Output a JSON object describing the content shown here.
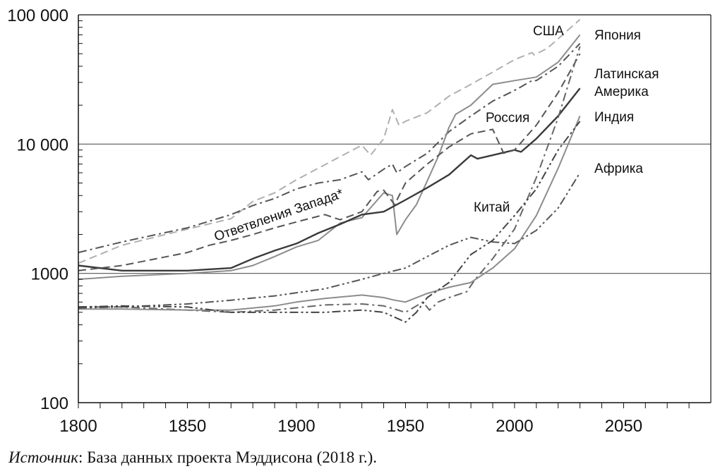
{
  "source": {
    "prefix": "Источник",
    "text": ": База данных проекта Мэддисона (2018 г.)."
  },
  "chart_data": {
    "type": "line",
    "title": "",
    "xlabel": "",
    "ylabel": "",
    "x_scale": "linear",
    "y_scale": "log",
    "xlim": [
      1800,
      2090
    ],
    "ylim": [
      100,
      100000
    ],
    "grid": "horizontal lines at 1000 and 10 000 only",
    "x_ticks": [
      "1800",
      "1850",
      "1900",
      "1950",
      "2000",
      "2050"
    ],
    "y_ticks": [
      "100",
      "1000",
      "10 000",
      "100 000"
    ],
    "series": [
      {
        "name": "США",
        "color": "#b0b0b0",
        "style": "dashed",
        "points": [
          [
            1800,
            1200
          ],
          [
            1820,
            1650
          ],
          [
            1850,
            2200
          ],
          [
            1870,
            2650
          ],
          [
            1880,
            3600
          ],
          [
            1890,
            4200
          ],
          [
            1900,
            5300
          ],
          [
            1910,
            6500
          ],
          [
            1920,
            8000
          ],
          [
            1930,
            9800
          ],
          [
            1934,
            8200
          ],
          [
            1940,
            11000
          ],
          [
            1944,
            18500
          ],
          [
            1947,
            14000
          ],
          [
            1950,
            15000
          ],
          [
            1960,
            17500
          ],
          [
            1970,
            23500
          ],
          [
            1980,
            29000
          ],
          [
            1990,
            36000
          ],
          [
            2000,
            45000
          ],
          [
            2008,
            51000
          ],
          [
            2009,
            49000
          ],
          [
            2015,
            55000
          ],
          [
            2030,
            92000
          ]
        ]
      },
      {
        "name": "Ответвления Запада",
        "color": "#555555",
        "style": "dashdot",
        "points": [
          [
            1800,
            1450
          ],
          [
            1820,
            1750
          ],
          [
            1850,
            2250
          ],
          [
            1870,
            2850
          ],
          [
            1880,
            3350
          ],
          [
            1890,
            3800
          ],
          [
            1900,
            4500
          ],
          [
            1910,
            5000
          ],
          [
            1920,
            5300
          ],
          [
            1930,
            6100
          ],
          [
            1933,
            5300
          ],
          [
            1940,
            6400
          ],
          [
            1944,
            7000
          ],
          [
            1946,
            6000
          ],
          [
            1950,
            6700
          ],
          [
            1960,
            8500
          ],
          [
            1970,
            12500
          ],
          [
            1980,
            16500
          ],
          [
            1990,
            21500
          ],
          [
            2000,
            26000
          ],
          [
            2008,
            31000
          ],
          [
            2010,
            31000
          ],
          [
            2020,
            40000
          ],
          [
            2030,
            60000
          ]
        ]
      },
      {
        "name": "Япония",
        "color": "#8c8c8c",
        "style": "solid",
        "points": [
          [
            1800,
            900
          ],
          [
            1820,
            950
          ],
          [
            1850,
            1000
          ],
          [
            1870,
            1050
          ],
          [
            1880,
            1150
          ],
          [
            1890,
            1350
          ],
          [
            1900,
            1600
          ],
          [
            1910,
            1800
          ],
          [
            1920,
            2450
          ],
          [
            1930,
            2700
          ],
          [
            1940,
            4200
          ],
          [
            1944,
            4000
          ],
          [
            1946,
            2000
          ],
          [
            1950,
            2600
          ],
          [
            1955,
            3400
          ],
          [
            1960,
            5200
          ],
          [
            1965,
            8000
          ],
          [
            1970,
            13500
          ],
          [
            1973,
            17000
          ],
          [
            1980,
            20000
          ],
          [
            1990,
            29000
          ],
          [
            2000,
            31000
          ],
          [
            2010,
            33000
          ],
          [
            2020,
            43000
          ],
          [
            2030,
            70000
          ]
        ]
      },
      {
        "name": "Латинская Америка",
        "color": "#3a3a3a",
        "style": "solid",
        "points": [
          [
            1800,
            1150
          ],
          [
            1820,
            1050
          ],
          [
            1850,
            1050
          ],
          [
            1870,
            1100
          ],
          [
            1880,
            1300
          ],
          [
            1890,
            1500
          ],
          [
            1900,
            1700
          ],
          [
            1910,
            2050
          ],
          [
            1920,
            2400
          ],
          [
            1930,
            2850
          ],
          [
            1940,
            3000
          ],
          [
            1950,
            3700
          ],
          [
            1960,
            4600
          ],
          [
            1970,
            5800
          ],
          [
            1980,
            8200
          ],
          [
            1983,
            7700
          ],
          [
            1990,
            8200
          ],
          [
            2000,
            9000
          ],
          [
            2003,
            8700
          ],
          [
            2010,
            11000
          ],
          [
            2020,
            16500
          ],
          [
            2030,
            27000
          ]
        ]
      },
      {
        "name": "Россия",
        "color": "#555555",
        "style": "dashed",
        "points": [
          [
            1800,
            1050
          ],
          [
            1820,
            1150
          ],
          [
            1850,
            1450
          ],
          [
            1860,
            1650
          ],
          [
            1870,
            1800
          ],
          [
            1880,
            2000
          ],
          [
            1890,
            2250
          ],
          [
            1900,
            2500
          ],
          [
            1913,
            2850
          ],
          [
            1920,
            2600
          ],
          [
            1930,
            3000
          ],
          [
            1937,
            4300
          ],
          [
            1940,
            4400
          ],
          [
            1945,
            3400
          ],
          [
            1950,
            5000
          ],
          [
            1960,
            7000
          ],
          [
            1970,
            9500
          ],
          [
            1980,
            12000
          ],
          [
            1990,
            13000
          ],
          [
            1995,
            8500
          ],
          [
            2000,
            9000
          ],
          [
            2010,
            14000
          ],
          [
            2020,
            25000
          ],
          [
            2030,
            50000
          ]
        ]
      },
      {
        "name": "Китай",
        "color": "#666666",
        "style": "dashdot",
        "points": [
          [
            1800,
            550
          ],
          [
            1820,
            550
          ],
          [
            1850,
            520
          ],
          [
            1870,
            500
          ],
          [
            1890,
            520
          ],
          [
            1913,
            570
          ],
          [
            1930,
            580
          ],
          [
            1940,
            560
          ],
          [
            1950,
            500
          ],
          [
            1955,
            560
          ],
          [
            1958,
            600
          ],
          [
            1961,
            520
          ],
          [
            1965,
            600
          ],
          [
            1970,
            650
          ],
          [
            1978,
            720
          ],
          [
            1982,
            900
          ],
          [
            1990,
            1300
          ],
          [
            2000,
            2200
          ],
          [
            2010,
            5500
          ],
          [
            2020,
            16000
          ],
          [
            2030,
            57000
          ]
        ]
      },
      {
        "name": "Индия",
        "color": "#8c8c8c",
        "style": "solid",
        "points": [
          [
            1800,
            530
          ],
          [
            1820,
            530
          ],
          [
            1850,
            520
          ],
          [
            1870,
            520
          ],
          [
            1890,
            560
          ],
          [
            1900,
            600
          ],
          [
            1913,
            640
          ],
          [
            1930,
            680
          ],
          [
            1940,
            650
          ],
          [
            1945,
            620
          ],
          [
            1950,
            600
          ],
          [
            1960,
            700
          ],
          [
            1970,
            780
          ],
          [
            1980,
            850
          ],
          [
            1990,
            1100
          ],
          [
            2000,
            1550
          ],
          [
            2010,
            2800
          ],
          [
            2020,
            6500
          ],
          [
            2030,
            16500
          ]
        ]
      },
      {
        "name": "Африка",
        "color": "#555555",
        "style": "dashdotdot",
        "points": [
          [
            1800,
            540
          ],
          [
            1820,
            550
          ],
          [
            1850,
            580
          ],
          [
            1870,
            620
          ],
          [
            1890,
            670
          ],
          [
            1913,
            760
          ],
          [
            1930,
            900
          ],
          [
            1940,
            1000
          ],
          [
            1950,
            1100
          ],
          [
            1960,
            1350
          ],
          [
            1970,
            1650
          ],
          [
            1980,
            1900
          ],
          [
            1990,
            1750
          ],
          [
            2000,
            1700
          ],
          [
            2010,
            2150
          ],
          [
            2020,
            3200
          ],
          [
            2030,
            6000
          ]
        ]
      },
      {
        "name": "",
        "color": "#444444",
        "style": "dashdotdot",
        "points": [
          [
            1800,
            550
          ],
          [
            1820,
            560
          ],
          [
            1850,
            550
          ],
          [
            1870,
            500
          ],
          [
            1890,
            500
          ],
          [
            1913,
            500
          ],
          [
            1930,
            520
          ],
          [
            1940,
            500
          ],
          [
            1950,
            420
          ],
          [
            1955,
            500
          ],
          [
            1960,
            650
          ],
          [
            1970,
            850
          ],
          [
            1980,
            1400
          ],
          [
            1990,
            1800
          ],
          [
            2000,
            2800
          ],
          [
            2010,
            4500
          ],
          [
            2020,
            9000
          ],
          [
            2030,
            15000
          ]
        ]
      }
    ],
    "annotations": [
      "США",
      "Япония",
      "Латинская",
      "Америка",
      "Индия",
      "Россия",
      "Африка",
      "Китай",
      "Ответвления Запада*"
    ]
  }
}
